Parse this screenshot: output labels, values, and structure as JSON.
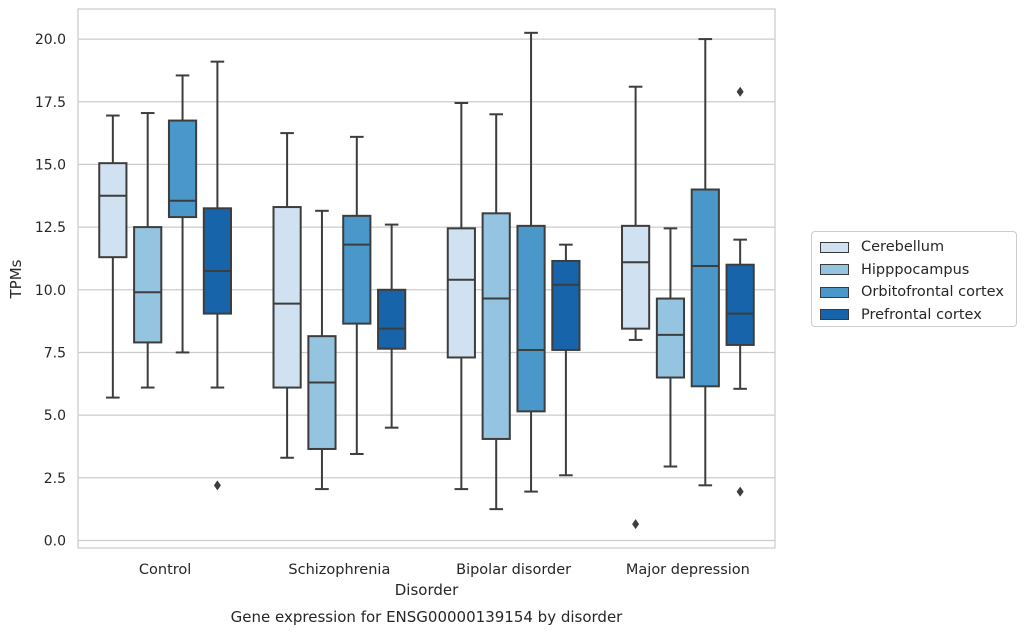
{
  "chart_data": {
    "type": "box",
    "title": "Gene expression for ENSG00000139154 by disorder",
    "xlabel": "Disorder",
    "ylabel": "TPMs",
    "categories": [
      "Control",
      "Schizophrenia",
      "Bipolar disorder",
      "Major depression"
    ],
    "y_ticks": [
      "0.0",
      "2.5",
      "5.0",
      "7.5",
      "10.0",
      "12.5",
      "15.0",
      "17.5",
      "20.0"
    ],
    "ylim": [
      -0.3,
      21.2
    ],
    "grid": "horizontal",
    "legend_position": "right",
    "series": [
      {
        "name": "Cerebellum",
        "color": "#d0e1f2",
        "boxes": [
          {
            "min": 5.7,
            "q1": 11.3,
            "median": 13.75,
            "q3": 15.05,
            "max": 16.95,
            "outliers": []
          },
          {
            "min": 3.3,
            "q1": 6.1,
            "median": 9.45,
            "q3": 13.3,
            "max": 16.25,
            "outliers": []
          },
          {
            "min": 2.05,
            "q1": 7.3,
            "median": 10.4,
            "q3": 12.45,
            "max": 17.45,
            "outliers": []
          },
          {
            "min": 8.0,
            "q1": 8.45,
            "median": 11.1,
            "q3": 12.55,
            "max": 18.1,
            "outliers": [
              0.65
            ]
          }
        ]
      },
      {
        "name": "Hipppocampus",
        "color": "#94c4df",
        "boxes": [
          {
            "min": 6.1,
            "q1": 7.9,
            "median": 9.9,
            "q3": 12.5,
            "max": 17.05,
            "outliers": []
          },
          {
            "min": 2.05,
            "q1": 3.65,
            "median": 6.3,
            "q3": 8.15,
            "max": 13.15,
            "outliers": []
          },
          {
            "min": 1.25,
            "q1": 4.05,
            "median": 9.65,
            "q3": 13.05,
            "max": 17.0,
            "outliers": []
          },
          {
            "min": 2.95,
            "q1": 6.5,
            "median": 8.2,
            "q3": 9.65,
            "max": 12.45,
            "outliers": []
          }
        ]
      },
      {
        "name": "Orbitofrontal cortex",
        "color": "#4a98c9",
        "boxes": [
          {
            "min": 7.5,
            "q1": 12.9,
            "median": 13.55,
            "q3": 16.75,
            "max": 18.55,
            "outliers": []
          },
          {
            "min": 3.45,
            "q1": 8.65,
            "median": 11.8,
            "q3": 12.95,
            "max": 16.1,
            "outliers": []
          },
          {
            "min": 1.95,
            "q1": 5.15,
            "median": 7.6,
            "q3": 12.55,
            "max": 20.25,
            "outliers": []
          },
          {
            "min": 2.2,
            "q1": 6.15,
            "median": 10.95,
            "q3": 14.0,
            "max": 20.0,
            "outliers": []
          }
        ]
      },
      {
        "name": "Prefrontal cortex",
        "color": "#1764ab",
        "boxes": [
          {
            "min": 6.1,
            "q1": 9.05,
            "median": 10.75,
            "q3": 13.25,
            "max": 19.1,
            "outliers": [
              2.2
            ]
          },
          {
            "min": 4.5,
            "q1": 7.65,
            "median": 8.45,
            "q3": 10.0,
            "max": 12.6,
            "outliers": []
          },
          {
            "min": 2.6,
            "q1": 7.6,
            "median": 10.2,
            "q3": 11.15,
            "max": 11.8,
            "outliers": []
          },
          {
            "min": 6.05,
            "q1": 7.8,
            "median": 9.05,
            "q3": 11.0,
            "max": 12.0,
            "outliers": [
              17.9,
              1.95
            ]
          }
        ]
      }
    ]
  }
}
